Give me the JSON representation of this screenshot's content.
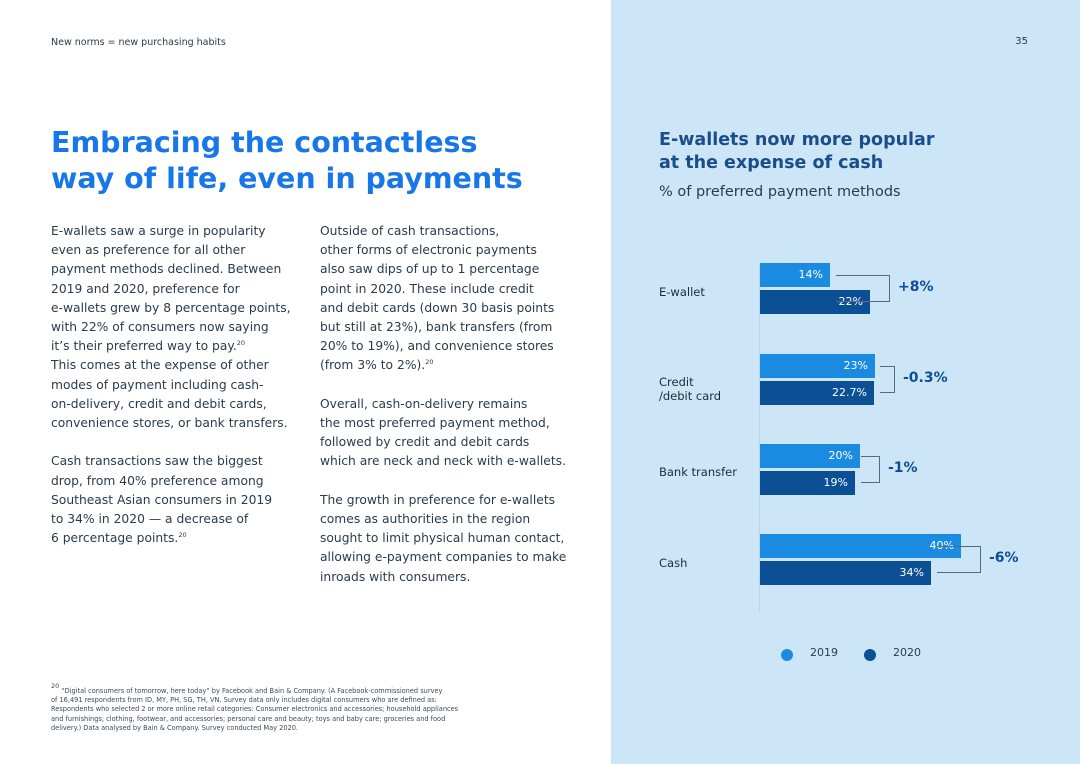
{
  "header": {
    "section": "New norms = new purchasing habits",
    "page_number": "35"
  },
  "title": {
    "line1": "Embracing the contactless",
    "line2": "way of life, even in payments"
  },
  "col1": {
    "lines": [
      "E-wallets saw a surge in popularity",
      "even as preference for all other",
      "payment methods declined. Between",
      "2019 and 2020, preference for",
      "e-wallets grew by 8 percentage points,",
      "with 22% of consumers now saying",
      "it’s their preferred way to pay.",
      "This comes at the expense of other",
      "modes of payment including cash-",
      "on-delivery, credit and debit cards,",
      "convenience stores, or bank transfers.",
      "Cash transactions saw the biggest",
      "drop, from 40% preference among",
      "Southeast Asian consumers in 2019",
      "to 34% in 2020 — a decrease of",
      "6 percentage points."
    ],
    "ref": "20"
  },
  "col2": {
    "lines": [
      "Outside of cash transactions,",
      "other forms of electronic payments",
      "also saw dips of up to 1 percentage",
      "point in 2020. These include credit",
      "and debit cards (down 30 basis points",
      "but still at 23%), bank transfers (from",
      "20% to 19%), and convenience stores",
      "(from 3% to 2%).",
      "Overall, cash-on-delivery remains",
      "the most preferred payment method,",
      "followed by credit and debit cards",
      "which are neck and neck with e-wallets.",
      "The growth in preference for e-wallets",
      "comes as authorities in the region",
      "sought to limit physical human contact,",
      "allowing e-payment companies to make",
      "inroads with consumers."
    ],
    "ref": "20"
  },
  "footnote": {
    "ref": "20",
    "lines": [
      "“Digital consumers of tomorrow, here today” by Facebook and Bain & Company. (A Facebook-commissioned survey",
      "of 16,491 respondents from ID, MY, PH, SG, TH, VN. Survey data only includes digital consumers who are defined as:",
      "Respondents who selected 2 or more online retail categories: Consumer electronics and accessories; household appliances",
      "and furnishings; clothing, footwear, and accessories; personal care and beauty; toys and baby care; groceries and food",
      "delivery.) Data analysed by Bain & Company. Survey conducted May 2020."
    ]
  },
  "colors": {
    "accent": "#1877e8",
    "series_2019": "#1a8be0",
    "series_2020": "#0b4f94",
    "panel": "#cde6f7"
  },
  "chart_data": {
    "type": "bar",
    "orientation": "horizontal",
    "title_line1": "E-wallets now more popular",
    "title_line2": "at the expense of cash",
    "subtitle": "% of preferred payment methods",
    "categories": [
      {
        "line1": "E-wallet",
        "line2": ""
      },
      {
        "line1": "Credit",
        "line2": "/debit card"
      },
      {
        "line1": "Bank transfer",
        "line2": ""
      },
      {
        "line1": "Cash",
        "line2": ""
      }
    ],
    "series": [
      {
        "name": "2019",
        "values": [
          14,
          23,
          20,
          40
        ],
        "labels": [
          "14%",
          "23%",
          "20%",
          "40%"
        ]
      },
      {
        "name": "2020",
        "values": [
          22,
          22.7,
          19,
          34
        ],
        "labels": [
          "22%",
          "22.7%",
          "19%",
          "34%"
        ]
      }
    ],
    "changes": [
      "+8%",
      "-0.3%",
      "-1%",
      "-6%"
    ],
    "xlim": [
      0,
      40
    ],
    "legend": [
      "2019",
      "2020"
    ],
    "legend_position": "bottom"
  }
}
